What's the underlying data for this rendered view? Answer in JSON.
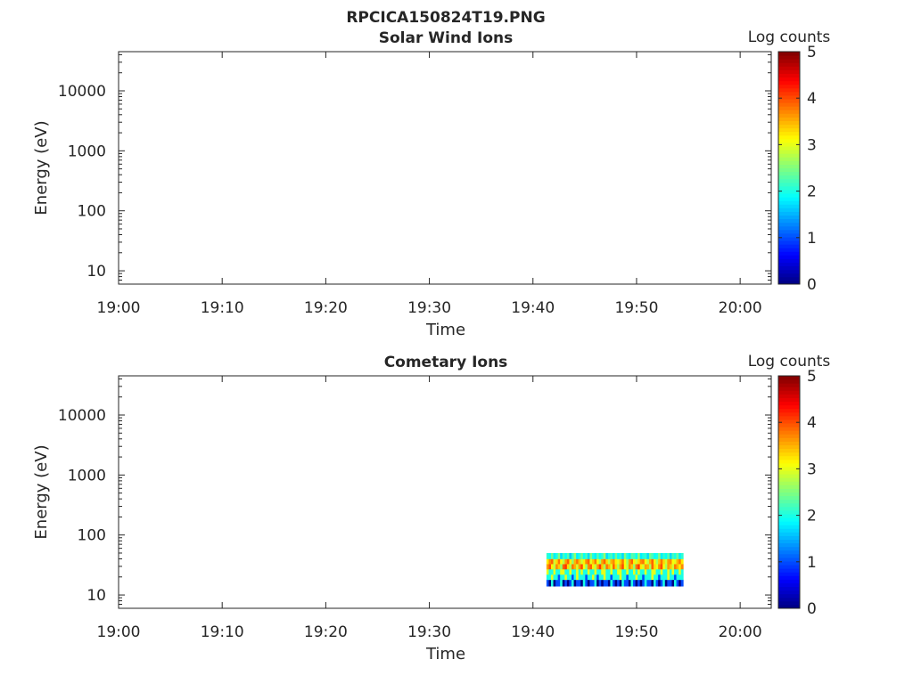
{
  "figure": {
    "title": "RPCICA150824T19.PNG"
  },
  "chart_data": [
    {
      "type": "heatmap",
      "title": "Solar Wind Ions",
      "xlabel": "Time",
      "ylabel": "Energy (eV)",
      "x_ticks": [
        "19:00",
        "19:10",
        "19:20",
        "19:30",
        "19:40",
        "19:50",
        "20:00"
      ],
      "xlim": [
        "19:00",
        "20:03"
      ],
      "y_scale": "log",
      "y_ticks": [
        10,
        100,
        1000,
        10000
      ],
      "y_tick_labels": [
        "10",
        "100",
        "1000",
        "10000"
      ],
      "ylim": [
        6,
        45000
      ],
      "colorbar": {
        "label": "Log counts",
        "range": [
          0,
          5
        ],
        "ticks": [
          "0",
          "1",
          "2",
          "3",
          "4",
          "5"
        ],
        "colormap": "jet"
      },
      "data_blocks": []
    },
    {
      "type": "heatmap",
      "title": "Cometary Ions",
      "xlabel": "Time",
      "ylabel": "Energy (eV)",
      "x_ticks": [
        "19:00",
        "19:10",
        "19:20",
        "19:30",
        "19:40",
        "19:50",
        "20:00"
      ],
      "xlim": [
        "19:00",
        "20:03"
      ],
      "y_scale": "log",
      "y_ticks": [
        10,
        100,
        1000,
        10000
      ],
      "y_tick_labels": [
        "10",
        "100",
        "1000",
        "10000"
      ],
      "ylim": [
        6,
        45000
      ],
      "colorbar": {
        "label": "Log counts",
        "range": [
          0,
          5
        ],
        "ticks": [
          "0",
          "1",
          "2",
          "3",
          "4",
          "5"
        ],
        "colormap": "jet"
      },
      "data_blocks": [
        {
          "time_start": "19:41.3",
          "time_end": "19:54.5",
          "energy_bands": [
            {
              "e_low": 14.0,
              "e_high": 18.0,
              "pattern": [
                1,
                0,
                2,
                0,
                1,
                1,
                2,
                0,
                1,
                0,
                1,
                2,
                0,
                1,
                1,
                0,
                2,
                1,
                0,
                1,
                1,
                2,
                0,
                1,
                0,
                1,
                1,
                0,
                2,
                1,
                0,
                1,
                0,
                2,
                1,
                1,
                0,
                2,
                1,
                0,
                1,
                0,
                1,
                2,
                1,
                1,
                0,
                2,
                1,
                0,
                1,
                2,
                0,
                1,
                1,
                0,
                2,
                1,
                0,
                1
              ]
            },
            {
              "e_low": 18.0,
              "e_high": 22.0,
              "pattern": [
                2,
                2,
                3,
                2,
                2,
                1,
                2,
                2,
                3,
                2,
                2,
                1,
                2,
                3,
                2,
                2,
                2,
                1,
                2,
                2,
                3,
                2,
                1,
                2,
                2,
                3,
                2,
                2,
                1,
                2,
                2,
                2,
                3,
                2,
                2,
                1,
                2,
                2,
                2,
                3,
                2,
                2,
                1,
                2,
                2,
                2,
                3,
                2,
                2,
                1,
                2,
                2,
                2,
                3,
                2,
                2,
                1,
                2,
                2,
                2
              ]
            },
            {
              "e_low": 22.0,
              "e_high": 27.0,
              "pattern": [
                3,
                2,
                2,
                3,
                2,
                2,
                3,
                3,
                2,
                2,
                3,
                2,
                2,
                3,
                2,
                3,
                2,
                2,
                3,
                2,
                2,
                3,
                2,
                2,
                3,
                3,
                2,
                2,
                3,
                2,
                2,
                3,
                3,
                2,
                2,
                3,
                2,
                2,
                3,
                2,
                3,
                2,
                2,
                3,
                2,
                2,
                3,
                3,
                2,
                2,
                3,
                2,
                2,
                3,
                2,
                3,
                2,
                2,
                3,
                2
              ]
            },
            {
              "e_low": 27.0,
              "e_high": 33.0,
              "pattern": [
                3.6,
                4,
                3.2,
                2.8,
                3.7,
                3.4,
                2.6,
                3.9,
                4.1,
                3.3,
                2.7,
                3.8,
                3.5,
                2.9,
                3.6,
                4,
                3.1,
                2.6,
                3.7,
                3.9,
                3.2,
                2.8,
                3.6,
                4.1,
                3.4,
                2.7,
                3.8,
                3.5,
                3,
                3.9,
                3.3,
                2.7,
                3.6,
                4,
                3.1,
                2.8,
                3.7,
                3.4,
                2.6,
                3.8,
                4.1,
                3.2,
                2.9,
                3.6,
                3.5,
                2.7,
                3.9,
                3.3,
                3,
                3.7,
                4,
                3.1,
                2.7,
                3.6,
                3.4,
                2.9,
                3.8,
                3.5,
                3.2,
                3.7
              ]
            },
            {
              "e_low": 33.0,
              "e_high": 40.0,
              "pattern": [
                3.2,
                3.7,
                3.9,
                2.9,
                3.3,
                3.8,
                3.1,
                2.8,
                3.6,
                3.9,
                3.2,
                2.6,
                3.5,
                3.8,
                3.4,
                2.9,
                3.2,
                3.7,
                3.9,
                3,
                3.4,
                3.8,
                3.1,
                2.7,
                3.6,
                3.9,
                3.3,
                2.8,
                3.5,
                3.7,
                3.2,
                3,
                3.4,
                3.8,
                3.1,
                2.7,
                3.6,
                3.9,
                3.2,
                2.9,
                3.3,
                3.7,
                3.8,
                3.1,
                2.8,
                3.5,
                3.9,
                3.2,
                2.7,
                3.4,
                3.8,
                3.3,
                2.9,
                3.6,
                3.7,
                3.1,
                3,
                3.5,
                3.8,
                3.2
              ]
            },
            {
              "e_low": 40.0,
              "e_high": 50.0,
              "pattern": [
                2.1,
                1.9,
                2.4,
                1.8,
                2,
                2.5,
                1.7,
                2.2,
                1.9,
                2.3,
                1.6,
                2.1,
                2.6,
                1.8,
                2,
                2.4,
                1.9,
                2.2,
                1.7,
                2.5,
                2,
                1.8,
                2.3,
                1.9,
                2.1,
                2.6,
                1.7,
                2,
                2.2,
                1.8,
                2.4,
                1.9,
                2.1,
                1.7,
                2.5,
                2,
                1.8,
                2.3,
                2.2,
                1.9,
                2.6,
                1.8,
                2,
                2.1,
                1.7,
                2.4,
                2.2,
                1.9,
                2,
                2.5,
                1.8,
                2.1,
                1.9,
                2.3,
                1.7,
                2.2,
                2,
                2.4,
                1.8,
                2.1
              ]
            }
          ]
        }
      ]
    }
  ]
}
